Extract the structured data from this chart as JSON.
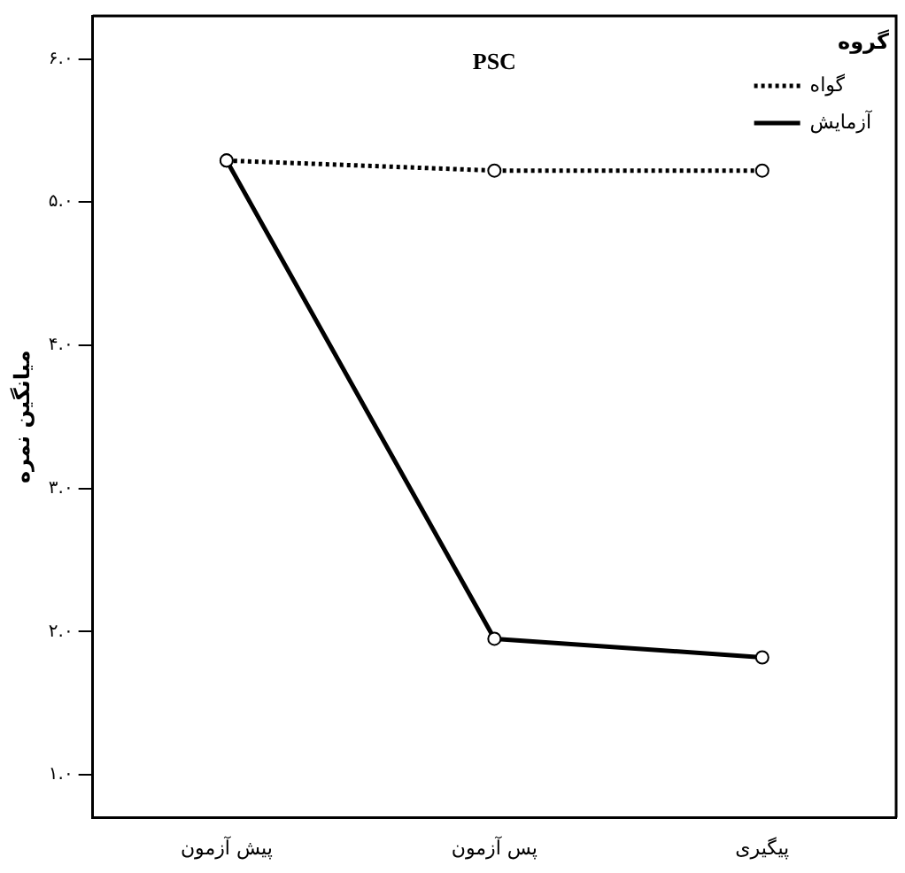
{
  "chart_data": {
    "type": "line",
    "title": "PSC",
    "ylabel": "میانگین نمره",
    "legend_title": "گروه",
    "legend": "top right",
    "categories": [
      "پیش آزمون",
      "پس آزمون",
      "پیگیری"
    ],
    "series": [
      {
        "name": "گواه",
        "color": "#000000",
        "line_style": "dotted",
        "values": [
          5.29,
          5.22,
          5.22
        ]
      },
      {
        "name": "آزمایش",
        "color": "#000000",
        "line_style": "solid",
        "values": [
          5.29,
          1.95,
          1.82
        ]
      }
    ],
    "marker": "circle",
    "grid": false,
    "ylim": [
      0.7,
      6.3
    ],
    "yticks": [
      {
        "value": 1,
        "label": "۱.۰"
      },
      {
        "value": 2,
        "label": "۲.۰"
      },
      {
        "value": 3,
        "label": "۳.۰"
      },
      {
        "value": 4,
        "label": "۴.۰"
      },
      {
        "value": 5,
        "label": "۵.۰"
      },
      {
        "value": 6,
        "label": "۶.۰"
      }
    ]
  }
}
